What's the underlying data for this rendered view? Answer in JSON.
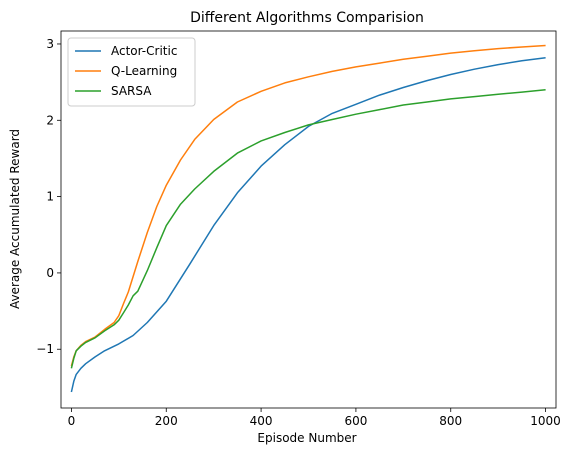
{
  "chart_data": {
    "type": "line",
    "title": "Different Algorithms Comparision",
    "xlabel": "Episode Number",
    "ylabel": "Average Accumulated Reward",
    "xlim": [
      -22,
      1022
    ],
    "ylim": [
      -1.77,
      3.17
    ],
    "xticks": [
      0,
      200,
      400,
      600,
      800,
      1000
    ],
    "yticks": [
      -1,
      0,
      1,
      2,
      3
    ],
    "ytick_labels": [
      "−1",
      "0",
      "1",
      "2",
      "3"
    ],
    "grid": false,
    "legend_position": "upper-left",
    "series": [
      {
        "name": "Actor-Critic",
        "color": "#1f77b4",
        "x": [
          0,
          5,
          10,
          20,
          30,
          50,
          70,
          100,
          130,
          160,
          200,
          250,
          300,
          350,
          400,
          450,
          500,
          550,
          600,
          650,
          700,
          750,
          800,
          850,
          900,
          950,
          1000
        ],
        "y": [
          -1.56,
          -1.42,
          -1.33,
          -1.25,
          -1.19,
          -1.1,
          -1.02,
          -0.93,
          -0.82,
          -0.65,
          -0.37,
          0.12,
          0.62,
          1.05,
          1.4,
          1.68,
          1.92,
          2.09,
          2.21,
          2.33,
          2.43,
          2.52,
          2.6,
          2.67,
          2.73,
          2.78,
          2.82
        ]
      },
      {
        "name": "Q-Learning",
        "color": "#ff7f0e",
        "x": [
          0,
          5,
          10,
          20,
          30,
          50,
          70,
          90,
          100,
          110,
          120,
          140,
          160,
          180,
          200,
          230,
          260,
          300,
          350,
          400,
          450,
          500,
          550,
          600,
          650,
          700,
          750,
          800,
          850,
          900,
          950,
          1000
        ],
        "y": [
          -1.22,
          -1.1,
          -1.02,
          -0.95,
          -0.9,
          -0.84,
          -0.74,
          -0.65,
          -0.56,
          -0.4,
          -0.25,
          0.15,
          0.53,
          0.87,
          1.15,
          1.48,
          1.75,
          2.01,
          2.24,
          2.38,
          2.49,
          2.57,
          2.64,
          2.7,
          2.75,
          2.8,
          2.84,
          2.88,
          2.91,
          2.94,
          2.96,
          2.98
        ]
      },
      {
        "name": "SARSA",
        "color": "#2ca02c",
        "x": [
          0,
          5,
          10,
          20,
          30,
          50,
          70,
          90,
          100,
          110,
          120,
          130,
          140,
          160,
          180,
          200,
          230,
          260,
          300,
          350,
          400,
          450,
          500,
          550,
          600,
          650,
          700,
          750,
          800,
          850,
          900,
          950,
          1000
        ],
        "y": [
          -1.25,
          -1.12,
          -1.02,
          -0.96,
          -0.91,
          -0.85,
          -0.76,
          -0.68,
          -0.62,
          -0.52,
          -0.42,
          -0.3,
          -0.24,
          0.03,
          0.33,
          0.62,
          0.9,
          1.1,
          1.33,
          1.57,
          1.73,
          1.84,
          1.94,
          2.01,
          2.08,
          2.14,
          2.2,
          2.24,
          2.28,
          2.31,
          2.34,
          2.37,
          2.4
        ]
      }
    ]
  }
}
